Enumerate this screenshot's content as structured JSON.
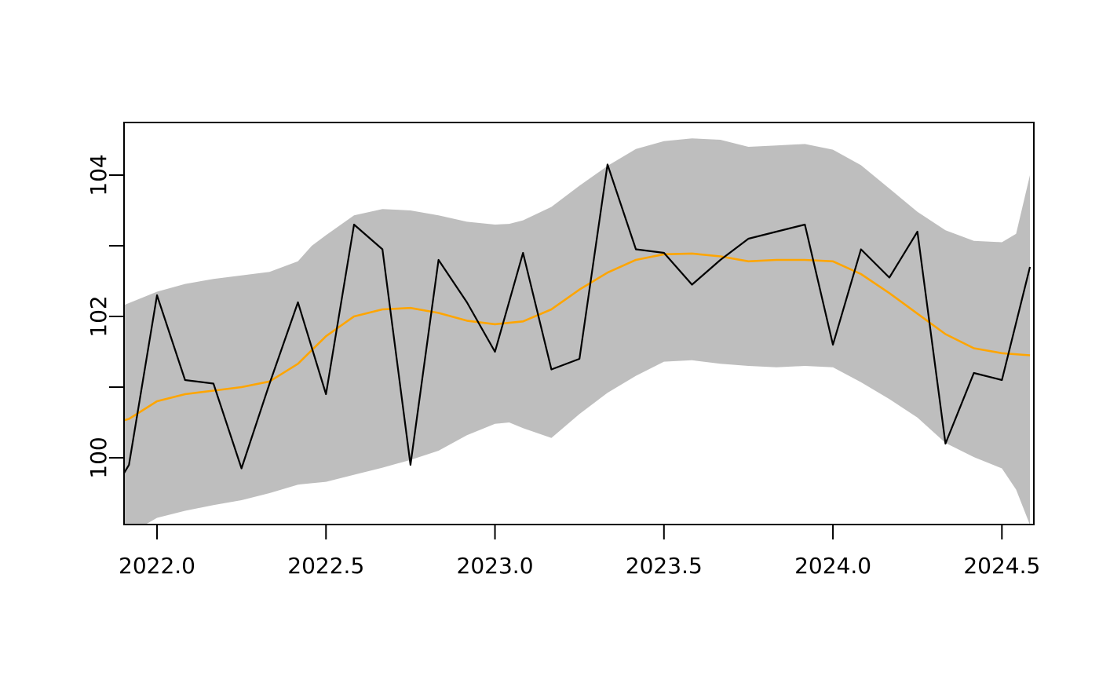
{
  "chart_data": {
    "type": "line",
    "title": "",
    "xlabel": "",
    "ylabel": "",
    "grid": false,
    "legend_position": "none",
    "frequency": "monthly",
    "xlim": [
      2021.9024,
      2024.5945
    ],
    "ylim": [
      99.0556,
      104.7444
    ],
    "x_ticks": {
      "values": [
        2022.0,
        2022.5,
        2023.0,
        2023.5,
        2024.0,
        2024.5
      ],
      "labels": [
        "2022.0",
        "2022.5",
        "2023.0",
        "2023.5",
        "2024.0",
        "2024.5"
      ]
    },
    "y_ticks": {
      "values": [
        100,
        101,
        102,
        103,
        104
      ],
      "labels": [
        "100",
        "",
        "102",
        "",
        "104"
      ]
    },
    "colors": {
      "observed": "#000000",
      "trend": "#FFA500",
      "band": "#BEBEBE",
      "frame": "#000000",
      "background": "#FFFFFF"
    },
    "series": [
      {
        "name": "observed",
        "type": "line",
        "color": "#000000",
        "stroke_width": 2.2,
        "x": [
          2021.902,
          2021.917,
          2022.0,
          2022.083,
          2022.167,
          2022.25,
          2022.333,
          2022.417,
          2022.5,
          2022.583,
          2022.667,
          2022.75,
          2022.833,
          2022.917,
          2023.0,
          2023.083,
          2023.167,
          2023.25,
          2023.333,
          2023.417,
          2023.5,
          2023.583,
          2023.667,
          2023.75,
          2023.833,
          2023.917,
          2024.0,
          2024.083,
          2024.167,
          2024.25,
          2024.333,
          2024.417,
          2024.5,
          2024.583
        ],
        "y": [
          99.78,
          99.9,
          102.3,
          101.1,
          101.05,
          99.85,
          101.05,
          102.2,
          100.9,
          103.3,
          102.95,
          99.9,
          102.8,
          102.2,
          101.5,
          102.9,
          101.25,
          101.4,
          104.15,
          102.95,
          102.9,
          102.45,
          102.8,
          103.1,
          103.2,
          103.3,
          101.6,
          102.95,
          102.55,
          103.2,
          100.2,
          101.2,
          101.1,
          102.7
        ]
      },
      {
        "name": "trend",
        "type": "line",
        "color": "#FFA500",
        "stroke_width": 2.6,
        "x": [
          2021.902,
          2021.917,
          2022.0,
          2022.083,
          2022.167,
          2022.25,
          2022.333,
          2022.417,
          2022.5,
          2022.583,
          2022.667,
          2022.75,
          2022.833,
          2022.917,
          2023.0,
          2023.083,
          2023.167,
          2023.25,
          2023.333,
          2023.417,
          2023.5,
          2023.583,
          2023.667,
          2023.75,
          2023.833,
          2023.917,
          2024.0,
          2024.083,
          2024.167,
          2024.25,
          2024.333,
          2024.417,
          2024.5,
          2024.583
        ],
        "y": [
          100.53,
          100.55,
          100.8,
          100.9,
          100.95,
          101.0,
          101.08,
          101.33,
          101.72,
          102.0,
          102.1,
          102.12,
          102.05,
          101.94,
          101.89,
          101.93,
          102.1,
          102.38,
          102.62,
          102.8,
          102.88,
          102.89,
          102.85,
          102.78,
          102.8,
          102.8,
          102.78,
          102.6,
          102.33,
          102.04,
          101.75,
          101.55,
          101.48,
          101.45
        ]
      }
    ],
    "band": {
      "name": "confidence-band",
      "color": "#BEBEBE",
      "x": [
        2021.902,
        2022.0,
        2022.083,
        2022.167,
        2022.25,
        2022.333,
        2022.417,
        2022.458,
        2022.5,
        2022.583,
        2022.667,
        2022.75,
        2022.833,
        2022.917,
        2023.0,
        2023.042,
        2023.083,
        2023.167,
        2023.25,
        2023.333,
        2023.417,
        2023.5,
        2023.583,
        2023.667,
        2023.75,
        2023.833,
        2023.917,
        2024.0,
        2024.083,
        2024.167,
        2024.25,
        2024.333,
        2024.417,
        2024.5,
        2024.542,
        2024.583
      ],
      "hi": [
        102.16,
        102.35,
        102.46,
        102.53,
        102.58,
        102.63,
        102.78,
        103.0,
        103.15,
        103.43,
        103.52,
        103.5,
        103.43,
        103.34,
        103.3,
        103.31,
        103.36,
        103.55,
        103.85,
        104.13,
        104.37,
        104.48,
        104.52,
        104.5,
        104.4,
        104.42,
        104.44,
        104.36,
        104.14,
        103.81,
        103.48,
        103.22,
        103.07,
        103.05,
        103.17,
        104.0
      ],
      "lo": [
        98.88,
        99.15,
        99.25,
        99.33,
        99.4,
        99.5,
        99.62,
        99.64,
        99.66,
        99.76,
        99.86,
        99.97,
        100.1,
        100.32,
        100.48,
        100.5,
        100.42,
        100.28,
        100.62,
        100.92,
        101.16,
        101.36,
        101.38,
        101.33,
        101.3,
        101.28,
        101.3,
        101.28,
        101.07,
        100.83,
        100.57,
        100.21,
        100.01,
        99.85,
        99.55,
        99.05
      ]
    }
  }
}
